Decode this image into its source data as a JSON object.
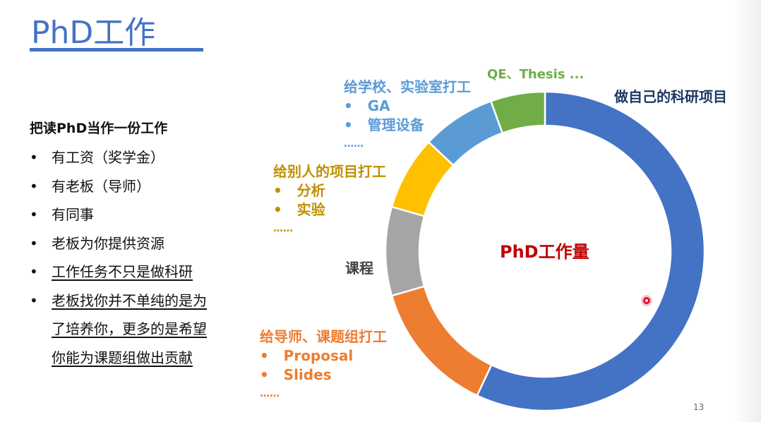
{
  "slide": {
    "title": "PhD工作",
    "page_number": "13"
  },
  "left_panel": {
    "heading": "把读PhD当作一份工作",
    "items": [
      {
        "text": "有工资（奖学金）",
        "underlined": false
      },
      {
        "text": "有老板（导师）",
        "underlined": false
      },
      {
        "text": "有同事",
        "underlined": false
      },
      {
        "text": "老板为你提供资源",
        "underlined": false
      },
      {
        "text": "工作任务不只是做科研",
        "underlined": true
      },
      {
        "text": "老板找你并不单纯的是为了培养你，更多的是希望你能为课题组做出贡献",
        "underlined": true,
        "lines": [
          "老板找你并不单纯的是为",
          "了培养你，更多的是希望",
          "你能为课题组做出贡献"
        ]
      }
    ],
    "bullet_char": "•"
  },
  "chart_data": {
    "type": "pie",
    "donut": true,
    "center_label": "PhD工作量",
    "slices": [
      {
        "name": "做自己的科研项目",
        "value": 57,
        "color": "#4472C4"
      },
      {
        "name": "给导师、课题组打工",
        "value": 13.5,
        "color": "#ED7D31"
      },
      {
        "name": "课程",
        "value": 9,
        "color": "#A5A5A5"
      },
      {
        "name": "给别人的项目打工",
        "value": 7.5,
        "color": "#FFC000"
      },
      {
        "name": "给学校、实验室打工",
        "value": 7.5,
        "color": "#5B9BD5"
      },
      {
        "name": "QE、Thesis ...",
        "value": 5.5,
        "color": "#70AD47"
      }
    ]
  },
  "annotations": {
    "own_research": {
      "title": "做自己的科研项目",
      "color": "#1F3864"
    },
    "qe_thesis": {
      "title": "QE、Thesis ...",
      "color": "#70AD47"
    },
    "school_lab": {
      "title": "给学校、实验室打工",
      "items": [
        "GA",
        "管理设备"
      ],
      "more": "……",
      "color": "#5B9BD5"
    },
    "others_project": {
      "title": "给别人的项目打工",
      "items": [
        "分析",
        "实验"
      ],
      "more": "……",
      "color": "#C09000"
    },
    "courses": {
      "title": "课程",
      "color": "#404040"
    },
    "advisor_group": {
      "title": "给导师、课题组打工",
      "items": [
        "Proposal",
        "Slides"
      ],
      "more": "……",
      "color": "#ED7D31"
    }
  }
}
